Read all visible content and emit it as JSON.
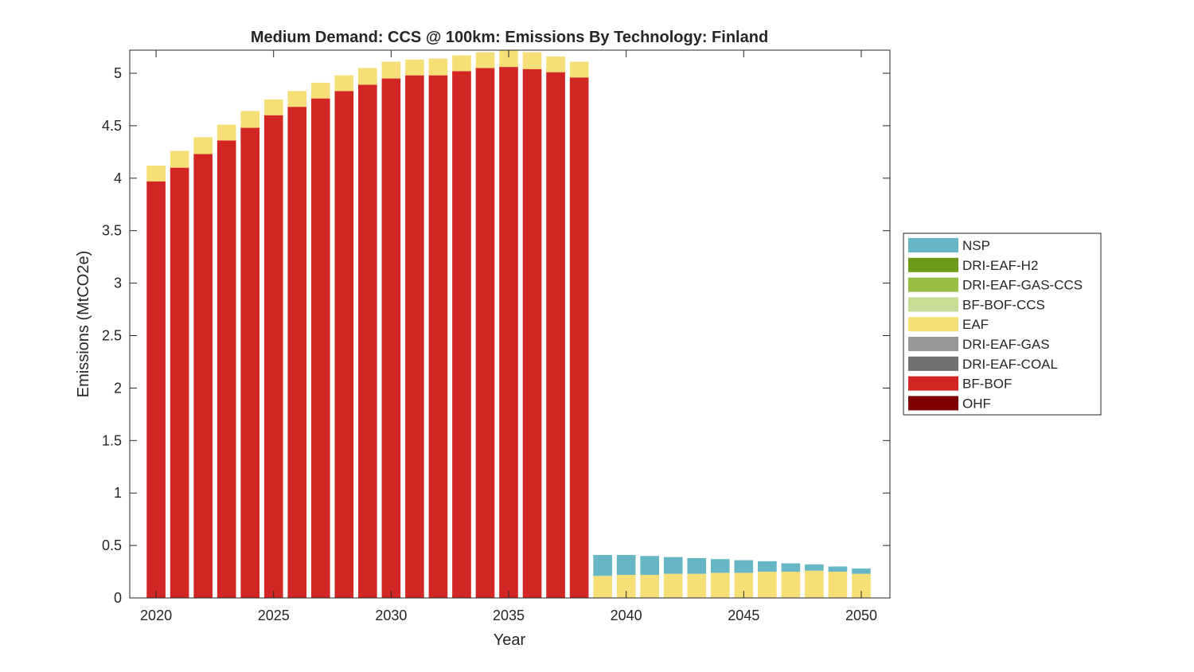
{
  "chart_data": {
    "type": "bar",
    "stacked": true,
    "title": "Medium Demand: CCS @ 100km: Emissions By Technology: Finland",
    "xlabel": "Year",
    "ylabel": "Emissions (MtCO2e)",
    "xlim": [
      2018.88,
      2051.22
    ],
    "ylim": [
      0,
      5.22
    ],
    "xticks": [
      2020,
      2025,
      2030,
      2035,
      2040,
      2045,
      2050
    ],
    "yticks": [
      0,
      0.5,
      1,
      1.5,
      2,
      2.5,
      3,
      3.5,
      4,
      4.5,
      5
    ],
    "ytick_labels": [
      "0",
      "0.5",
      "1",
      "1.5",
      "2",
      "2.5",
      "3",
      "3.5",
      "4",
      "4.5",
      "5"
    ],
    "grid": false,
    "legend_position": "right",
    "categories": [
      2020,
      2021,
      2022,
      2023,
      2024,
      2025,
      2026,
      2027,
      2028,
      2029,
      2030,
      2031,
      2032,
      2033,
      2034,
      2035,
      2036,
      2037,
      2038,
      2039,
      2040,
      2041,
      2042,
      2043,
      2044,
      2045,
      2046,
      2047,
      2048,
      2049,
      2050
    ],
    "series": [
      {
        "name": "OHF",
        "color": "#7f0000",
        "values": [
          0,
          0,
          0,
          0,
          0,
          0,
          0,
          0,
          0,
          0,
          0,
          0,
          0,
          0,
          0,
          0,
          0,
          0,
          0,
          0,
          0,
          0,
          0,
          0,
          0,
          0,
          0,
          0,
          0,
          0,
          0
        ]
      },
      {
        "name": "BF-BOF",
        "color": "#d12624",
        "values": [
          3.97,
          4.1,
          4.23,
          4.36,
          4.48,
          4.6,
          4.68,
          4.76,
          4.83,
          4.89,
          4.95,
          4.98,
          4.98,
          5.02,
          5.05,
          5.06,
          5.04,
          5.01,
          4.96,
          0,
          0,
          0,
          0,
          0,
          0,
          0,
          0,
          0,
          0,
          0,
          0
        ]
      },
      {
        "name": "DRI-EAF-COAL",
        "color": "#707070",
        "values": [
          0,
          0,
          0,
          0,
          0,
          0,
          0,
          0,
          0,
          0,
          0,
          0,
          0,
          0,
          0,
          0,
          0,
          0,
          0,
          0,
          0,
          0,
          0,
          0,
          0,
          0,
          0,
          0,
          0,
          0,
          0
        ]
      },
      {
        "name": "DRI-EAF-GAS",
        "color": "#979797",
        "values": [
          0,
          0,
          0,
          0,
          0,
          0,
          0,
          0,
          0,
          0,
          0,
          0,
          0,
          0,
          0,
          0,
          0,
          0,
          0,
          0,
          0,
          0,
          0,
          0,
          0,
          0,
          0,
          0,
          0,
          0,
          0
        ]
      },
      {
        "name": "EAF",
        "color": "#f7df77",
        "values": [
          0.15,
          0.16,
          0.16,
          0.15,
          0.16,
          0.15,
          0.15,
          0.15,
          0.15,
          0.16,
          0.16,
          0.15,
          0.16,
          0.15,
          0.15,
          0.16,
          0.16,
          0.15,
          0.15,
          0.21,
          0.22,
          0.22,
          0.23,
          0.23,
          0.24,
          0.24,
          0.25,
          0.25,
          0.26,
          0.25,
          0.23
        ]
      },
      {
        "name": "BF-BOF-CCS",
        "color": "#c7dd96",
        "values": [
          0,
          0,
          0,
          0,
          0,
          0,
          0,
          0,
          0,
          0,
          0,
          0,
          0,
          0,
          0,
          0,
          0,
          0,
          0,
          0,
          0,
          0,
          0,
          0,
          0,
          0,
          0,
          0,
          0,
          0,
          0
        ]
      },
      {
        "name": "DRI-EAF-GAS-CCS",
        "color": "#97bf45",
        "values": [
          0,
          0,
          0,
          0,
          0,
          0,
          0,
          0,
          0,
          0,
          0,
          0,
          0,
          0,
          0,
          0,
          0,
          0,
          0,
          0,
          0,
          0,
          0,
          0,
          0,
          0,
          0,
          0,
          0,
          0,
          0
        ]
      },
      {
        "name": "DRI-EAF-H2",
        "color": "#6a9a18",
        "values": [
          0,
          0,
          0,
          0,
          0,
          0,
          0,
          0,
          0,
          0,
          0,
          0,
          0,
          0,
          0,
          0,
          0,
          0,
          0,
          0,
          0,
          0,
          0,
          0,
          0,
          0,
          0,
          0,
          0,
          0,
          0
        ]
      },
      {
        "name": "NSP",
        "color": "#67b6c5",
        "values": [
          0,
          0,
          0,
          0,
          0,
          0,
          0,
          0,
          0,
          0,
          0,
          0,
          0,
          0,
          0,
          0,
          0,
          0,
          0,
          0.2,
          0.19,
          0.18,
          0.16,
          0.15,
          0.13,
          0.12,
          0.1,
          0.08,
          0.06,
          0.05,
          0.05
        ]
      }
    ],
    "legend_order": [
      "NSP",
      "DRI-EAF-H2",
      "DRI-EAF-GAS-CCS",
      "BF-BOF-CCS",
      "EAF",
      "DRI-EAF-GAS",
      "DRI-EAF-COAL",
      "BF-BOF",
      "OHF"
    ]
  }
}
